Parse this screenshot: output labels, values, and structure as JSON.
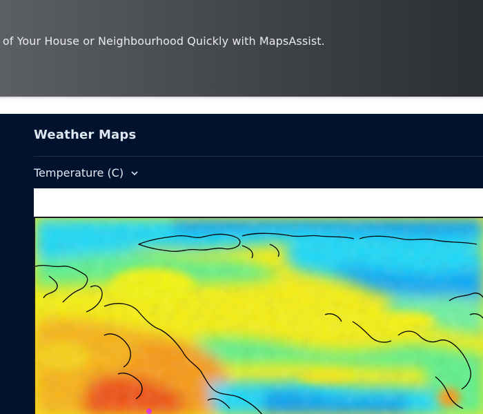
{
  "hero": {
    "tagline": "r of Your House or Neighbourhood Quickly with MapsAssist."
  },
  "weather": {
    "title": "Weather Maps",
    "selector_value": "Temperature (C)",
    "selector_icon": "chevron-down-icon"
  },
  "map": {
    "palette": {
      "cold_blue": "#0a9cf0",
      "cyan": "#1fd8f7",
      "green": "#5ef08a",
      "yellow": "#f6f20e",
      "orange": "#f79a12",
      "red": "#ef5318",
      "magenta": "#e52bd0",
      "coastline": "#000000"
    }
  }
}
